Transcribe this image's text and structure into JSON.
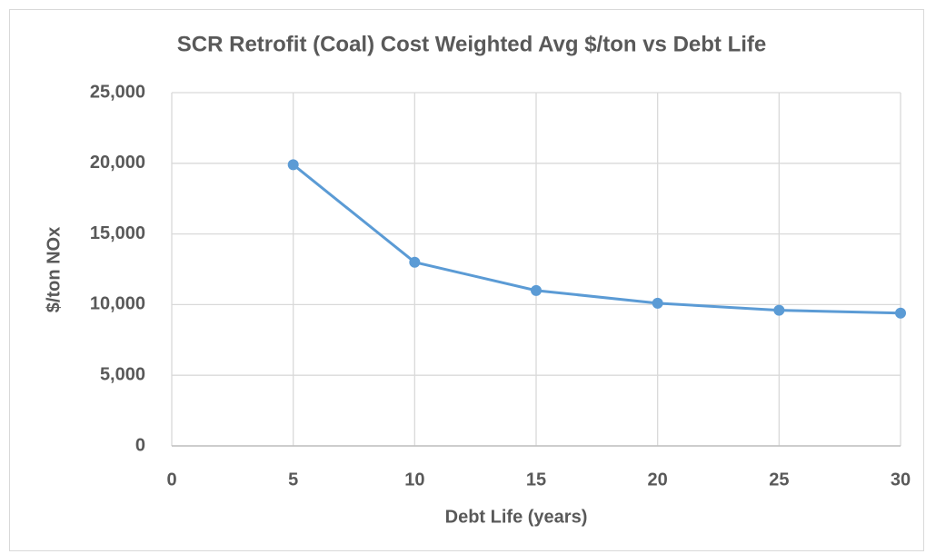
{
  "chart_data": {
    "type": "line",
    "title": "SCR Retrofit (Coal) Cost Weighted Avg $/ton vs Debt Life",
    "x_label": "Debt Life (years)",
    "y_label": "$/ton NOx",
    "x": [
      5,
      10,
      15,
      20,
      25,
      30
    ],
    "values": [
      19900,
      13000,
      11000,
      10100,
      9600,
      9400
    ],
    "color": "#5b9bd5",
    "xlim": [
      0,
      30
    ],
    "xticks": [
      0,
      5,
      10,
      15,
      20,
      25,
      30
    ],
    "ylim": [
      0,
      25000
    ],
    "yticks": [
      0,
      {
        "value": 5000,
        "label": "5,000"
      },
      {
        "value": 10000,
        "label": "10,000"
      },
      {
        "value": 15000,
        "label": "15,000"
      },
      {
        "value": 20000,
        "label": "20,000"
      },
      {
        "value": 25000,
        "label": "25,000"
      }
    ],
    "grid": true
  }
}
